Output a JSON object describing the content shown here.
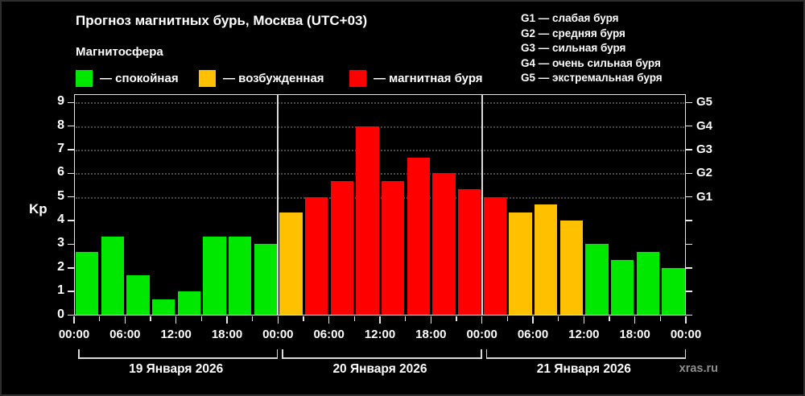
{
  "title": "Прогноз магнитных бурь, Москва (UTC+03)",
  "subtitle": "Магнитосфера",
  "legend": [
    {
      "status": "quiet",
      "label": "— спокойная"
    },
    {
      "status": "excited",
      "label": "— возбужденная"
    },
    {
      "status": "storm",
      "label": "— магнитная буря"
    }
  ],
  "g_scale_legend": [
    "G1 — слабая буря",
    "G2 — средняя буря",
    "G3 — сильная буря",
    "G4 — очень сильная буря",
    "G5 — экстремальная буря"
  ],
  "watermark": "xras.ru",
  "chart_data": {
    "type": "bar",
    "ylabel": "Kp",
    "ylim": [
      0,
      9.37
    ],
    "yticks": [
      0,
      1,
      2,
      3,
      4,
      5,
      6,
      7,
      8,
      9
    ],
    "grid_levels": [
      5,
      6,
      7,
      8,
      9
    ],
    "right_axis_labels": [
      {
        "kp": 5,
        "label": "G1"
      },
      {
        "kp": 6,
        "label": "G2"
      },
      {
        "kp": 7,
        "label": "G3"
      },
      {
        "kp": 8,
        "label": "G4"
      },
      {
        "kp": 9,
        "label": "G5"
      }
    ],
    "x_step_hours": 3,
    "time_labels": [
      "00:00",
      "06:00",
      "12:00",
      "18:00",
      "00:00",
      "06:00",
      "12:00",
      "18:00",
      "00:00",
      "06:00",
      "12:00",
      "18:00",
      "00:00"
    ],
    "days": [
      {
        "date": "19 Января 2026",
        "values": [
          2.67,
          3.33,
          1.67,
          0.67,
          1.0,
          3.33,
          3.33,
          3.0
        ],
        "status": [
          "quiet",
          "quiet",
          "quiet",
          "quiet",
          "quiet",
          "quiet",
          "quiet",
          "quiet"
        ]
      },
      {
        "date": "20 Января 2026",
        "values": [
          4.33,
          5.0,
          5.67,
          8.0,
          5.67,
          6.67,
          6.0,
          5.33
        ],
        "status": [
          "excited",
          "storm",
          "storm",
          "storm",
          "storm",
          "storm",
          "storm",
          "storm"
        ]
      },
      {
        "date": "21 Января 2026",
        "values": [
          5.0,
          4.33,
          4.67,
          4.0,
          3.0,
          2.33,
          2.67,
          2.0
        ],
        "status": [
          "storm",
          "excited",
          "excited",
          "excited",
          "quiet",
          "quiet",
          "quiet",
          "quiet"
        ]
      }
    ],
    "colors": {
      "quiet": "#00e800",
      "excited": "#ffc000",
      "storm": "#ff0000"
    }
  }
}
